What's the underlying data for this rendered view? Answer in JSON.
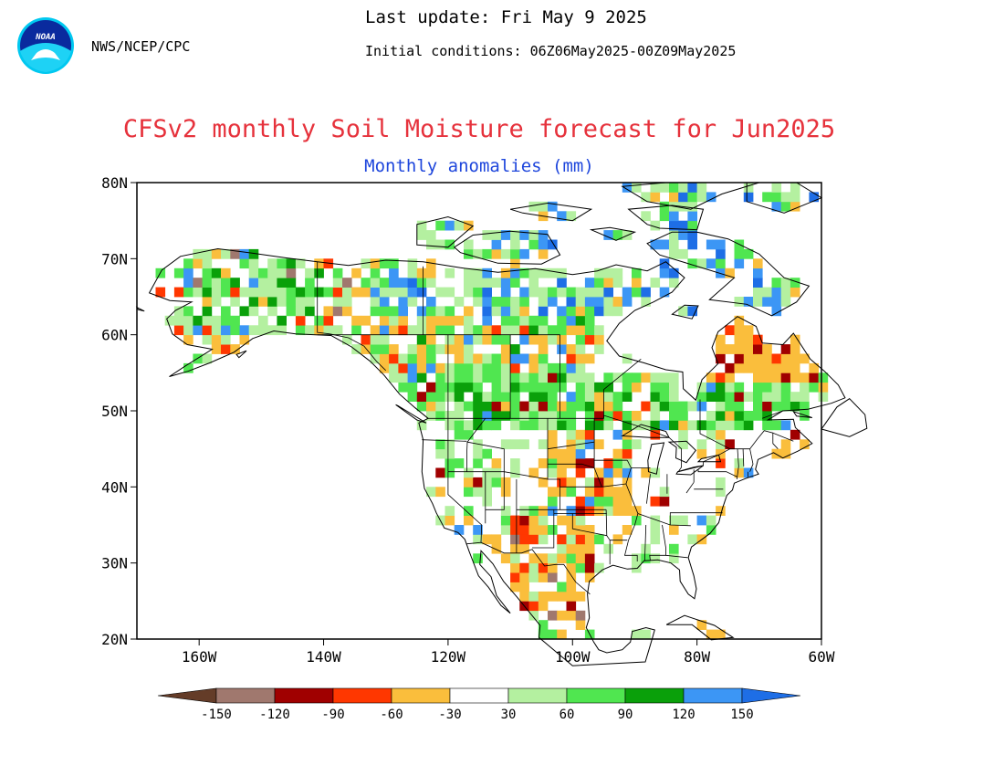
{
  "header": {
    "logo_text": "NOAA",
    "agency": "NWS/NCEP/CPC",
    "last_update": "Last update: Fri May 9 2025",
    "initial_conditions": "Initial conditions: 06Z06May2025-00Z09May2025"
  },
  "title": "CFSv2 monthly Soil Moisture forecast for Jun2025",
  "subtitle": "Monthly anomalies (mm)",
  "map": {
    "lat_labels": [
      "80N",
      "70N",
      "60N",
      "50N",
      "40N",
      "30N",
      "20N"
    ],
    "lon_labels": [
      "160W",
      "140W",
      "120W",
      "100W",
      "80W",
      "60W"
    ],
    "lat_values": [
      80,
      70,
      60,
      50,
      40,
      30,
      20
    ],
    "lon_values": [
      -160,
      -140,
      -120,
      -100,
      -80,
      -60
    ],
    "lon_range": [
      -170,
      -60
    ],
    "lat_range": [
      20,
      80
    ]
  },
  "colorbar": {
    "labels": [
      "-150",
      "-120",
      "-90",
      "-60",
      "-30",
      "30",
      "60",
      "90",
      "120",
      "150"
    ],
    "colors": [
      "#643c28",
      "#a0786e",
      "#a00000",
      "#ff3700",
      "#fabe3c",
      "#ffffff",
      "#b4f0a0",
      "#50e650",
      "#0aa00a",
      "#3c96f5",
      "#1e6ee6"
    ]
  },
  "anomaly_colors": {
    "brown": "#a0786e",
    "darkred": "#a00000",
    "red": "#ff3700",
    "orange": "#fabe3c",
    "lightgreen": "#b4f0a0",
    "green": "#50e650",
    "darkgreen": "#0aa00a",
    "blue": "#3c96f5",
    "darkblue": "#1e6ee6"
  }
}
